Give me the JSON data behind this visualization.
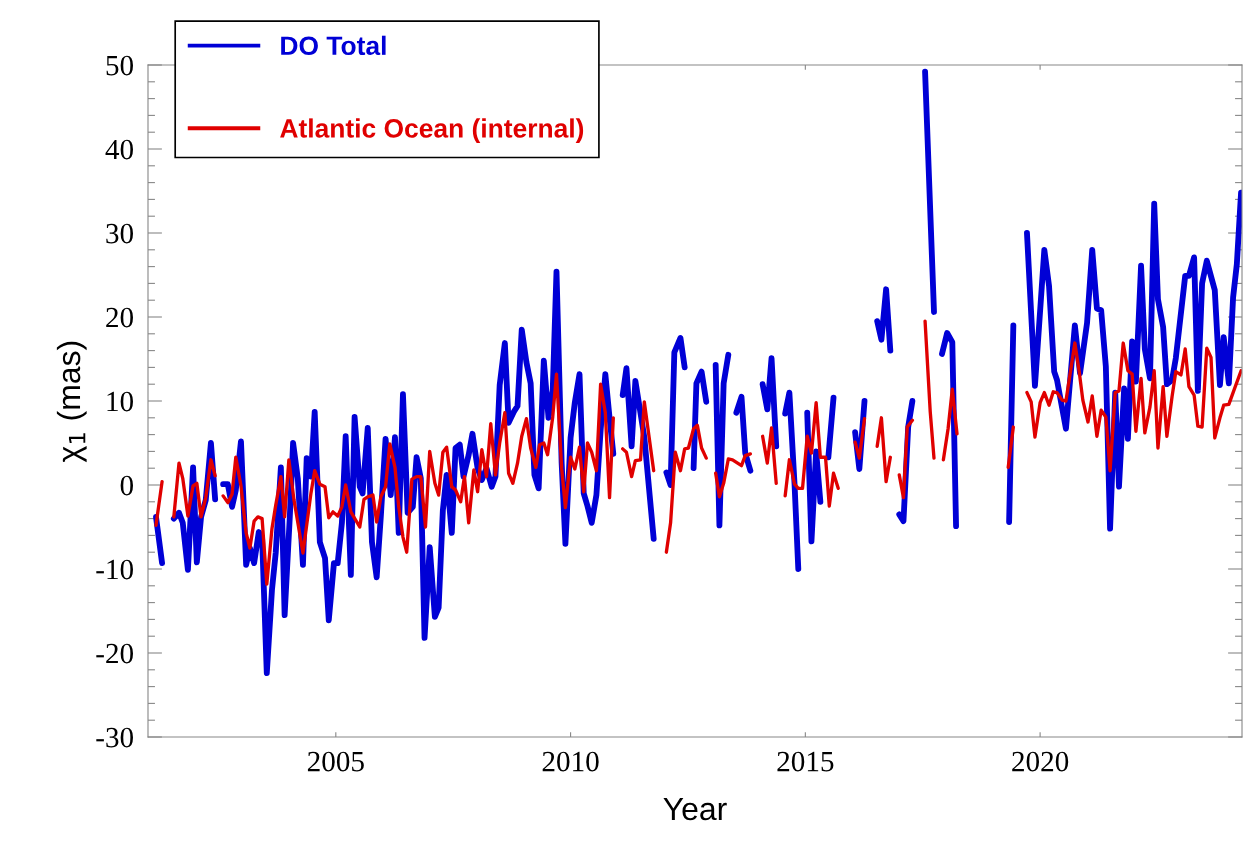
{
  "chart_data": {
    "type": "line",
    "xlabel": "Year",
    "ylabel": "χ$_{1}$ (mas)",
    "xlim": [
      2001.0,
      2024.3
    ],
    "xticks": [
      2005,
      2010,
      2015,
      2020
    ],
    "ylim": [
      -30,
      50
    ],
    "yticks": [
      -30,
      {
        "value": -28,
        "label": null
      },
      {
        "value": -26,
        "label": null
      },
      {
        "value": -24,
        "label": null
      },
      {
        "value": -22,
        "label": null
      },
      -20,
      {
        "value": -18,
        "label": null
      },
      {
        "value": -16,
        "label": null
      },
      {
        "value": -14,
        "label": null
      },
      {
        "value": -12,
        "label": null
      },
      -10,
      {
        "value": -8,
        "label": null
      },
      {
        "value": -6,
        "label": null
      },
      {
        "value": -4,
        "label": null
      },
      {
        "value": -2,
        "label": null
      },
      0,
      {
        "value": 2,
        "label": null
      },
      {
        "value": 4,
        "label": null
      },
      {
        "value": 6,
        "label": null
      },
      {
        "value": 8,
        "label": null
      },
      10,
      {
        "value": 12,
        "label": null
      },
      {
        "value": 14,
        "label": null
      },
      {
        "value": 16,
        "label": null
      },
      {
        "value": 18,
        "label": null
      },
      20,
      {
        "value": 22,
        "label": null
      },
      {
        "value": 24,
        "label": null
      },
      {
        "value": 26,
        "label": null
      },
      {
        "value": 28,
        "label": null
      },
      30,
      {
        "value": 32,
        "label": null
      },
      {
        "value": 34,
        "label": null
      },
      {
        "value": 36,
        "label": null
      },
      {
        "value": 38,
        "label": null
      },
      40,
      {
        "value": 42,
        "label": null
      },
      {
        "value": 44,
        "label": null
      },
      {
        "value": 46,
        "label": null
      },
      {
        "value": 48,
        "label": null
      },
      50
    ],
    "grid": false,
    "legend": "top left",
    "marker": "none",
    "line_style": "solid",
    "series": [
      {
        "name": "DO Total",
        "color": "#0000d6",
        "x": [
          2001.17,
          2001.3,
          2001.42,
          2001.55,
          2001.66,
          2001.74,
          2001.85,
          2001.96,
          2002.04,
          2002.13,
          2002.23,
          2002.34,
          2002.43,
          2002.52,
          2002.6,
          2002.7,
          2002.79,
          2002.87,
          2002.98,
          2003.09,
          2003.17,
          2003.26,
          2003.36,
          2003.43,
          2003.53,
          2003.64,
          2003.72,
          2003.83,
          2003.91,
          2004.02,
          2004.09,
          2004.19,
          2004.3,
          2004.38,
          2004.47,
          2004.55,
          2004.66,
          2004.77,
          2004.85,
          2004.96,
          2005.04,
          2005.13,
          2005.21,
          2005.32,
          2005.4,
          2005.51,
          2005.57,
          2005.68,
          2005.77,
          2005.87,
          2005.96,
          2006.06,
          2006.17,
          2006.26,
          2006.34,
          2006.43,
          2006.53,
          2006.64,
          2006.72,
          2006.81,
          2006.89,
          2007.0,
          2007.11,
          2007.19,
          2007.28,
          2007.36,
          2007.47,
          2007.55,
          2007.64,
          2007.72,
          2007.83,
          2007.91,
          2008.02,
          2008.11,
          2008.21,
          2008.32,
          2008.4,
          2008.49,
          2008.6,
          2008.68,
          2008.79,
          2008.87,
          2008.96,
          2009.06,
          2009.15,
          2009.23,
          2009.32,
          2009.43,
          2009.53,
          2009.62,
          2009.7,
          2009.81,
          2009.89,
          2010.0,
          2010.09,
          2010.19,
          2010.28,
          2010.36,
          2010.45,
          2010.55,
          2010.64,
          2010.74,
          2010.83,
          2010.91,
          2011.01,
          2011.11,
          2011.19,
          2011.3,
          2011.38,
          2011.57,
          2011.77,
          2011.9,
          2012.04,
          2012.13,
          2012.21,
          2012.34,
          2012.43,
          2012.52,
          2012.62,
          2012.68,
          2012.79,
          2012.89,
          2012.99,
          2013.09,
          2013.17,
          2013.26,
          2013.36,
          2013.45,
          2013.53,
          2013.64,
          2013.72,
          2013.83,
          2013.96,
          2014.09,
          2014.19,
          2014.28,
          2014.38,
          2014.48,
          2014.57,
          2014.66,
          2014.77,
          2014.85,
          2014.94,
          2015.04,
          2015.13,
          2015.23,
          2015.32,
          2015.4,
          2015.49,
          2015.6,
          2015.85,
          2016.06,
          2016.15,
          2016.26,
          2016.4,
          2016.53,
          2016.62,
          2016.72,
          2016.81,
          2016.9,
          2017.0,
          2017.09,
          2017.19,
          2017.28,
          2017.4,
          2017.55,
          2017.74,
          2017.83,
          2017.91,
          2018.02,
          2018.13,
          2018.21,
          2018.8,
          2019.34,
          2019.43,
          2019.58,
          2019.72,
          2019.89,
          2020.09,
          2020.19,
          2020.3,
          2020.36,
          2020.55,
          2020.74,
          2020.85,
          2021.0,
          2021.11,
          2021.21,
          2021.3,
          2021.4,
          2021.49,
          2021.6,
          2021.68,
          2021.79,
          2021.87,
          2021.96,
          2022.04,
          2022.15,
          2022.23,
          2022.34,
          2022.43,
          2022.51,
          2022.62,
          2022.7,
          2022.81,
          2022.89,
          2023.09,
          2023.17,
          2023.28,
          2023.36,
          2023.45,
          2023.55,
          2023.72,
          2023.83,
          2023.91,
          2024.02,
          2024.11,
          2024.19,
          2024.28
        ],
        "values": [
          -3.8,
          -9.3,
          null,
          -4.0,
          -3.3,
          -4.5,
          -10.1,
          2.1,
          -9.2,
          -3.8,
          -1.8,
          5.0,
          -1.7,
          null,
          0.1,
          0.1,
          -2.6,
          -0.6,
          5.2,
          -9.5,
          -7.5,
          -9.3,
          -5.6,
          -6.3,
          -22.4,
          -12.5,
          -8.1,
          2.1,
          -15.5,
          -3.8,
          5.0,
          0.8,
          -9.5,
          3.2,
          1.0,
          8.7,
          -6.8,
          -8.7,
          -16.1,
          -9.3,
          -9.3,
          -4.5,
          5.8,
          -10.7,
          8.1,
          -0.2,
          -1.0,
          6.8,
          -6.8,
          -11.0,
          -3.6,
          5.5,
          -1.2,
          5.7,
          -5.7,
          10.8,
          -3.3,
          -2.6,
          3.3,
          0.8,
          -18.2,
          -7.4,
          -15.7,
          -14.6,
          -3.0,
          1.2,
          -5.7,
          4.4,
          4.8,
          1.0,
          3.6,
          6.1,
          2.0,
          0.6,
          2.0,
          -0.2,
          1.0,
          11.9,
          16.9,
          7.4,
          8.7,
          9.4,
          18.5,
          14.6,
          12.1,
          1.2,
          -0.4,
          14.8,
          8.0,
          11.3,
          25.4,
          2.6,
          -7.0,
          5.6,
          9.8,
          13.2,
          -1.0,
          -2.5,
          -4.5,
          -1.2,
          6.5,
          13.2,
          8.0,
          3.7,
          null,
          10.7,
          13.9,
          4.6,
          12.4,
          5.7,
          -6.4,
          null,
          1.5,
          0.0,
          15.8,
          17.5,
          14.0,
          null,
          2.0,
          12.1,
          13.5,
          9.9,
          null,
          14.3,
          -4.8,
          12.1,
          15.5,
          null,
          8.6,
          10.5,
          3.8,
          1.7,
          null,
          12.0,
          9.0,
          15.1,
          4.6,
          null,
          8.5,
          11.0,
          0.1,
          -10.0,
          null,
          8.6,
          -6.7,
          4.0,
          -2.0,
          null,
          3.3,
          10.4,
          null,
          6.3,
          1.9,
          10.0,
          null,
          19.5,
          17.3,
          23.3,
          16.0,
          null,
          -3.5,
          -4.3,
          6.9,
          10.0,
          null,
          49.2,
          20.6,
          null,
          15.6,
          18.1,
          17.0,
          -4.9,
          null,
          -4.4,
          19.0,
          null,
          30.0,
          11.8,
          28.0,
          23.7,
          13.5,
          12.5,
          6.7,
          19.0,
          13.3,
          19.3,
          28.0,
          21.0,
          20.8,
          14.1,
          -5.2,
          11.0,
          -0.2,
          11.5,
          5.5,
          17.1,
          12.3,
          26.1,
          16.2,
          12.7,
          33.5,
          22.1,
          18.8,
          12.0,
          12.5,
          15.1,
          24.9,
          24.9,
          27.1,
          11.2,
          24.0,
          26.7,
          23.2,
          11.9,
          17.6,
          12.1,
          22.3,
          26.3,
          34.8
        ]
      },
      {
        "name": "Atlantic Ocean (internal)",
        "color": "#e00000",
        "x": [
          2001.17,
          2001.3,
          2001.42,
          2001.55,
          2001.66,
          2001.74,
          2001.85,
          2001.96,
          2002.04,
          2002.13,
          2002.23,
          2002.34,
          2002.43,
          2002.52,
          2002.6,
          2002.7,
          2002.79,
          2002.87,
          2002.98,
          2003.09,
          2003.17,
          2003.26,
          2003.34,
          2003.43,
          2003.53,
          2003.64,
          2003.72,
          2003.83,
          2003.91,
          2004.0,
          2004.11,
          2004.3,
          2004.47,
          2004.55,
          2004.66,
          2004.77,
          2004.85,
          2004.94,
          2005.04,
          2005.13,
          2005.21,
          2005.32,
          2005.51,
          2005.6,
          2005.68,
          2005.79,
          2005.87,
          2005.96,
          2006.06,
          2006.15,
          2006.26,
          2006.34,
          2006.43,
          2006.51,
          2006.62,
          2006.72,
          2006.81,
          2006.91,
          2007.0,
          2007.11,
          2007.19,
          2007.28,
          2007.36,
          2007.47,
          2007.55,
          2007.66,
          2007.74,
          2007.83,
          2007.94,
          2008.02,
          2008.11,
          2008.21,
          2008.3,
          2008.4,
          2008.49,
          2008.6,
          2008.68,
          2008.77,
          2008.87,
          2008.96,
          2009.06,
          2009.15,
          2009.26,
          2009.34,
          2009.43,
          2009.51,
          2009.62,
          2009.7,
          2009.81,
          2009.89,
          2010.0,
          2010.09,
          2010.19,
          2010.28,
          2010.36,
          2010.45,
          2010.55,
          2010.64,
          2010.74,
          2010.83,
          2010.91,
          2011.01,
          2011.11,
          2011.19,
          2011.3,
          2011.38,
          2011.49,
          2011.57,
          2011.77,
          2011.9,
          2012.04,
          2012.13,
          2012.23,
          2012.34,
          2012.43,
          2012.51,
          2012.62,
          2012.7,
          2012.79,
          2012.89,
          2012.99,
          2013.09,
          2013.17,
          2013.26,
          2013.36,
          2013.45,
          2013.64,
          2013.72,
          2013.83,
          2013.96,
          2014.09,
          2014.19,
          2014.28,
          2014.38,
          2014.48,
          2014.57,
          2014.66,
          2014.77,
          2014.85,
          2014.94,
          2015.04,
          2015.13,
          2015.23,
          2015.32,
          2015.43,
          2015.51,
          2015.6,
          2015.7,
          2015.85,
          2016.06,
          2016.15,
          2016.26,
          2016.4,
          2016.53,
          2016.62,
          2016.72,
          2016.81,
          2016.9,
          2017.0,
          2017.09,
          2017.17,
          2017.28,
          2017.4,
          2017.55,
          2017.66,
          2017.74,
          2017.83,
          2017.94,
          2018.04,
          2018.13,
          2018.23,
          2018.8,
          2019.32,
          2019.43,
          2019.58,
          2019.72,
          2019.81,
          2019.89,
          2020.0,
          2020.09,
          2020.19,
          2020.28,
          2020.36,
          2020.47,
          2020.55,
          2020.74,
          2020.83,
          2020.91,
          2021.02,
          2021.11,
          2021.21,
          2021.3,
          2021.4,
          2021.49,
          2021.6,
          2021.68,
          2021.77,
          2021.87,
          2021.96,
          2022.04,
          2022.15,
          2022.23,
          2022.34,
          2022.43,
          2022.51,
          2022.62,
          2022.7,
          2022.81,
          2022.89,
          2023.0,
          2023.09,
          2023.17,
          2023.28,
          2023.36,
          2023.45,
          2023.55,
          2023.64,
          2023.72,
          2023.83,
          2023.91,
          2024.02,
          2024.11,
          2024.28
        ],
        "values": [
          -4.8,
          0.4,
          null,
          -3.8,
          2.6,
          0.8,
          -3.7,
          -0.1,
          0.2,
          -3.8,
          -1.5,
          3.0,
          1.1,
          null,
          -1.3,
          -2.1,
          -1.1,
          3.3,
          -0.1,
          -5.7,
          -7.5,
          -4.3,
          -3.8,
          -4.0,
          -11.8,
          -5.2,
          -2.4,
          1.0,
          -3.8,
          3.0,
          -1.8,
          -8.1,
          -1.0,
          1.7,
          0.1,
          -0.2,
          -3.9,
          -3.2,
          -3.7,
          -2.6,
          0.0,
          -3.2,
          -5.0,
          -1.7,
          -1.4,
          -1.2,
          -4.4,
          -1.4,
          -0.2,
          4.9,
          2.1,
          -2.6,
          -6.2,
          -8.0,
          0.7,
          1.0,
          1.0,
          -5.0,
          4.0,
          0.2,
          -1.2,
          3.9,
          4.5,
          -0.2,
          -0.6,
          -2.0,
          1.0,
          -4.5,
          1.8,
          -0.8,
          4.2,
          1.0,
          7.3,
          1.2,
          5.0,
          8.6,
          1.4,
          0.2,
          2.6,
          5.8,
          7.9,
          4.4,
          2.1,
          4.8,
          5.0,
          3.6,
          8.1,
          13.2,
          2.0,
          -2.7,
          3.3,
          1.9,
          4.5,
          -0.8,
          5.0,
          3.9,
          1.7,
          12.0,
          8.6,
          -1.5,
          8.0,
          null,
          4.3,
          3.9,
          1.0,
          2.9,
          3.0,
          9.9,
          1.7,
          null,
          -8.0,
          -4.5,
          3.9,
          1.7,
          4.3,
          4.4,
          6.7,
          7.1,
          4.4,
          3.2,
          null,
          1.4,
          -1.4,
          0.2,
          3.1,
          3.0,
          2.3,
          3.5,
          3.7,
          null,
          5.8,
          2.6,
          6.8,
          0.2,
          null,
          -1.3,
          3.0,
          0.1,
          -0.4,
          -0.4,
          5.8,
          3.8,
          9.8,
          3.3,
          3.3,
          -2.5,
          1.4,
          -0.4,
          null,
          5.1,
          3.2,
          7.9,
          null,
          4.6,
          8.0,
          0.4,
          3.3,
          null,
          1.2,
          -1.5,
          6.9,
          7.7,
          null,
          19.5,
          8.7,
          3.2,
          null,
          3.0,
          6.7,
          11.4,
          6.1,
          null,
          2.1,
          6.9,
          null,
          11.0,
          9.9,
          5.7,
          9.8,
          11.0,
          9.5,
          11.1,
          11.0,
          10.1,
          10.0,
          16.9,
          13.6,
          10.1,
          7.5,
          10.6,
          5.8,
          8.9,
          8.1,
          1.7,
          11.0,
          11.2,
          16.9,
          13.6,
          13.2,
          6.4,
          12.7,
          6.2,
          9.3,
          13.6,
          4.4,
          11.7,
          5.8,
          10.5,
          13.5,
          13.1,
          16.2,
          11.7,
          10.7,
          7.0,
          6.9,
          16.3,
          15.2,
          5.6,
          8.0,
          9.5,
          9.6,
          11.0,
          13.6
        ]
      }
    ]
  }
}
